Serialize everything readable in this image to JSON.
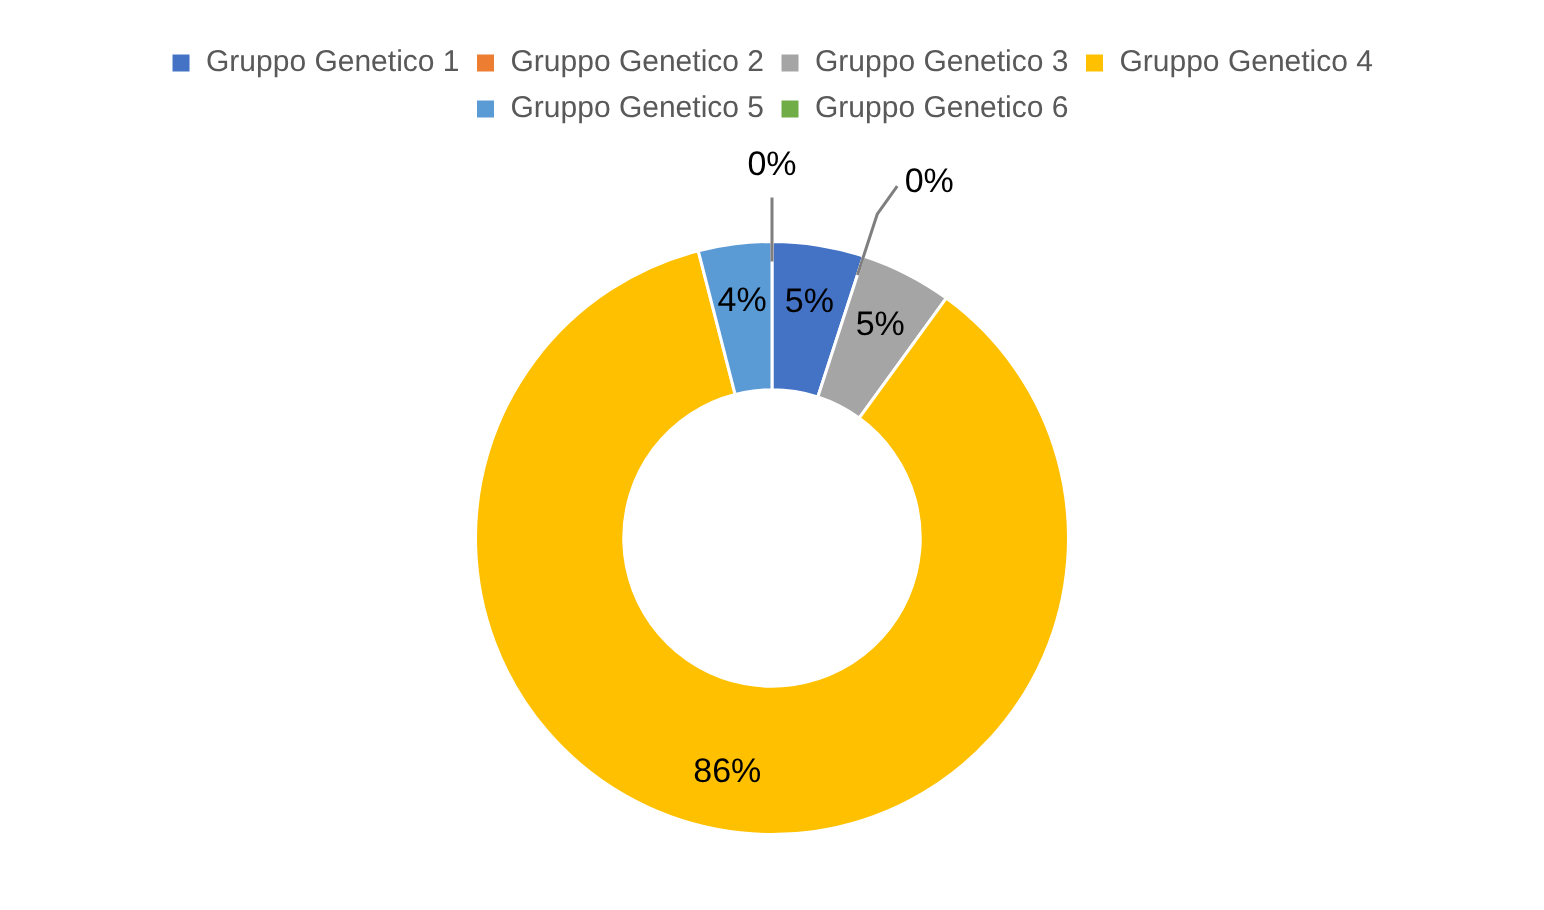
{
  "chart_data": {
    "type": "donut",
    "categories": [
      "Gruppo Genetico 1",
      "Gruppo Genetico 2",
      "Gruppo Genetico 3",
      "Gruppo Genetico 4",
      "Gruppo Genetico 5",
      "Gruppo Genetico 6"
    ],
    "values": [
      5,
      0,
      5,
      86,
      4,
      0
    ],
    "colors": [
      "#4472c4",
      "#ed7d31",
      "#a5a5a5",
      "#ffc000",
      "#5b9bd5",
      "#70ad47"
    ],
    "value_labels": [
      "5%",
      "0%",
      "5%",
      "86%",
      "4%",
      "0%"
    ],
    "legend": "top"
  }
}
